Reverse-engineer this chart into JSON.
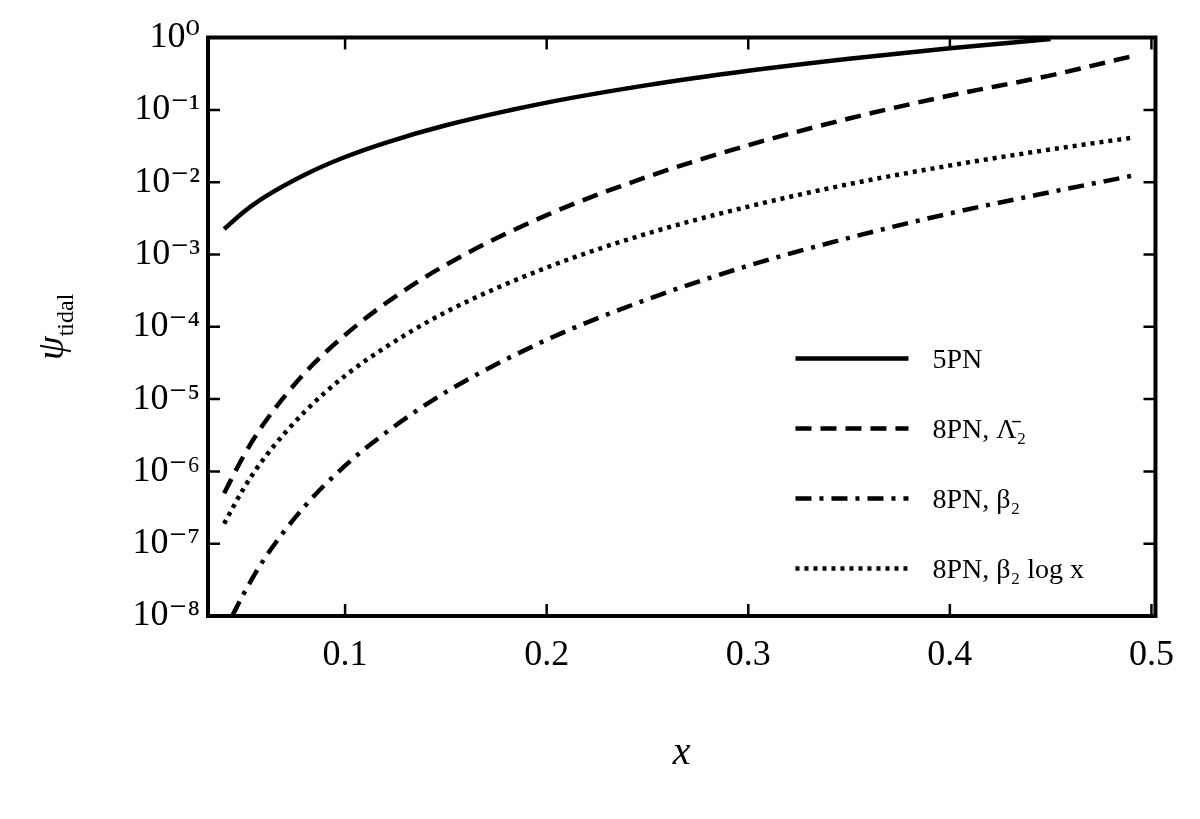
{
  "chart_data": {
    "type": "line",
    "xlabel": "x",
    "ylabel": "ψ$_{tidal}$",
    "xlim": [
      0.032,
      0.502
    ],
    "xticks": [
      0.1,
      0.2,
      0.3,
      0.4,
      0.5
    ],
    "ylim": [
      1e-08,
      1
    ],
    "log": "y",
    "marker": "none",
    "legend": "right",
    "yticks": [
      {
        "value": 1,
        "label": "10⁰"
      },
      {
        "value": 0.1,
        "label": "10⁻¹"
      },
      {
        "value": 0.01,
        "label": "10⁻²"
      },
      {
        "value": 0.001,
        "label": "10⁻³"
      },
      {
        "value": 0.0001,
        "label": "10⁻⁴"
      },
      {
        "value": 1e-05,
        "label": "10⁻⁵"
      },
      {
        "value": 1e-06,
        "label": "10⁻⁶"
      },
      {
        "value": 1e-07,
        "label": "10⁻⁷"
      },
      {
        "value": 1e-08,
        "label": "10⁻⁸"
      }
    ],
    "series": [
      {
        "name": "5PN",
        "color": "#000000",
        "line_style": "solid",
        "x": [
          0.04,
          0.05,
          0.06,
          0.08,
          0.1,
          0.12,
          0.15,
          0.2,
          0.25,
          0.3,
          0.35,
          0.4,
          0.45
        ],
        "values": [
          0.00225,
          0.00394,
          0.00621,
          0.0127,
          0.0223,
          0.0351,
          0.0613,
          0.126,
          0.22,
          0.347,
          0.51,
          0.712,
          0.956
        ]
      },
      {
        "name": "8PN, Λ̄₂",
        "color": "#000000",
        "line_style": "dashed",
        "x": [
          0.04,
          0.05,
          0.06,
          0.08,
          0.1,
          0.12,
          0.15,
          0.2,
          0.25,
          0.3,
          0.35,
          0.4,
          0.45,
          0.49
        ],
        "values": [
          5e-07,
          1.7e-06,
          4.7e-06,
          2.3e-05,
          7.7e-05,
          0.00021,
          0.00072,
          0.0035,
          0.0119,
          0.0325,
          0.076,
          0.158,
          0.3,
          0.55
        ]
      },
      {
        "name": "8PN, β₂",
        "color": "#000000",
        "line_style": "dashdot",
        "x": [
          0.044,
          0.05,
          0.06,
          0.08,
          0.1,
          0.12,
          0.15,
          0.2,
          0.25,
          0.3,
          0.35,
          0.4,
          0.45,
          0.49
        ],
        "values": [
          1e-08,
          2.1e-08,
          6.2e-08,
          3.3e-07,
          1.2e-06,
          3.4e-06,
          1.25e-05,
          6.6e-05,
          0.00024,
          0.0007,
          0.0017,
          0.0037,
          0.0073,
          0.0122
        ]
      },
      {
        "name": "8PN, β₂ log x",
        "color": "#000000",
        "line_style": "dotted",
        "x": [
          0.04,
          0.05,
          0.06,
          0.08,
          0.1,
          0.12,
          0.15,
          0.2,
          0.25,
          0.3,
          0.35,
          0.4,
          0.45,
          0.49
        ],
        "values": [
          1.9e-07,
          6e-07,
          1.54e-06,
          6.7e-06,
          2.1e-05,
          5.2e-05,
          0.00016,
          0.00066,
          0.00195,
          0.0046,
          0.0094,
          0.017,
          0.0284,
          0.041
        ]
      }
    ]
  }
}
